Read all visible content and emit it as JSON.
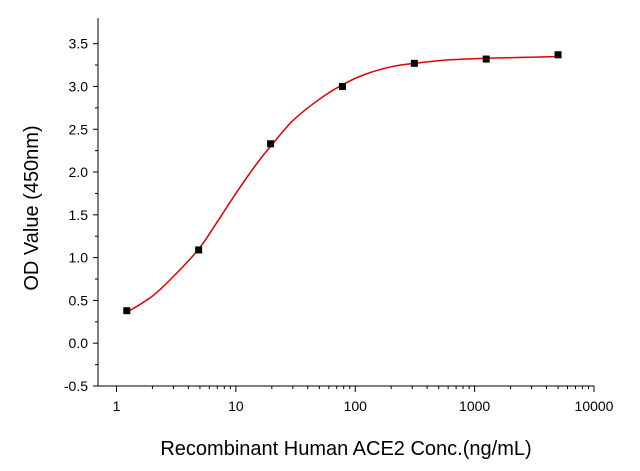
{
  "chart_data": {
    "type": "scatter",
    "xlabel": "Recombinant Human ACE2 Conc.(ng/mL)",
    "ylabel": "OD Value (450nm)",
    "x_scale": "log",
    "xlim": [
      0.7,
      10000
    ],
    "ylim": [
      -0.5,
      3.8
    ],
    "x_ticks": [
      1,
      10,
      100,
      1000,
      10000
    ],
    "x_tick_labels": [
      "1",
      "10",
      "100",
      "1000",
      "10000"
    ],
    "y_ticks": [
      -0.5,
      0.0,
      0.5,
      1.0,
      1.5,
      2.0,
      2.5,
      3.0,
      3.5
    ],
    "y_tick_labels": [
      "-0.5",
      "0.0",
      "0.5",
      "1.0",
      "1.5",
      "2.0",
      "2.5",
      "3.0",
      "3.5"
    ],
    "grid": false,
    "series": [
      {
        "marker": "square",
        "color": "#000000",
        "points": [
          {
            "x": 1.22,
            "y": 0.38
          },
          {
            "x": 4.88,
            "y": 1.09
          },
          {
            "x": 19.53,
            "y": 2.33
          },
          {
            "x": 78.13,
            "y": 3.0
          },
          {
            "x": 312.5,
            "y": 3.27
          },
          {
            "x": 1250,
            "y": 3.32
          },
          {
            "x": 5000,
            "y": 3.37
          }
        ]
      }
    ],
    "fit_curve": {
      "color": "#e00000",
      "points": [
        {
          "x": 1.22,
          "y": 0.36
        },
        {
          "x": 2,
          "y": 0.55
        },
        {
          "x": 3,
          "y": 0.78
        },
        {
          "x": 4.88,
          "y": 1.1
        },
        {
          "x": 7,
          "y": 1.42
        },
        {
          "x": 10,
          "y": 1.75
        },
        {
          "x": 15,
          "y": 2.1
        },
        {
          "x": 19.53,
          "y": 2.3
        },
        {
          "x": 30,
          "y": 2.6
        },
        {
          "x": 50,
          "y": 2.85
        },
        {
          "x": 78.13,
          "y": 3.02
        },
        {
          "x": 120,
          "y": 3.14
        },
        {
          "x": 200,
          "y": 3.23
        },
        {
          "x": 312.5,
          "y": 3.27
        },
        {
          "x": 600,
          "y": 3.31
        },
        {
          "x": 1250,
          "y": 3.33
        },
        {
          "x": 2500,
          "y": 3.34
        },
        {
          "x": 5000,
          "y": 3.35
        }
      ]
    }
  }
}
